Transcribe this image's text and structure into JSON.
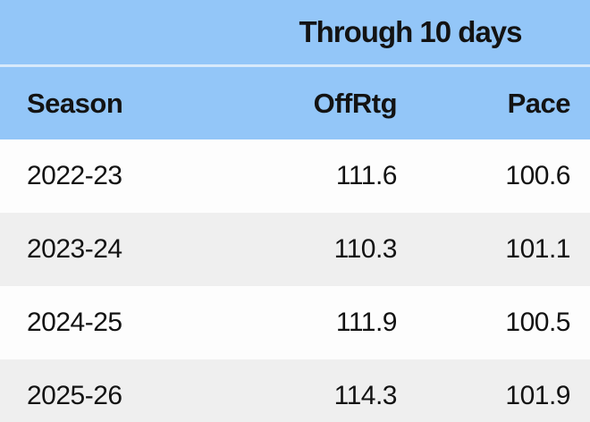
{
  "colors": {
    "header_blue": "#93C6F8",
    "header_divider": "#D7E9FB",
    "row_white": "#FDFDFD",
    "row_gray": "#EFEFEF",
    "text_dark": "#131313"
  },
  "chart_data": {
    "type": "table",
    "title": "Through 10 days",
    "columns": [
      "Season",
      "OffRtg",
      "Pace"
    ],
    "rows": [
      [
        "2022-23",
        "111.6",
        "100.6"
      ],
      [
        "2023-24",
        "110.3",
        "101.1"
      ],
      [
        "2024-25",
        "111.9",
        "100.5"
      ],
      [
        "2025-26",
        "114.3",
        "101.9"
      ]
    ]
  }
}
